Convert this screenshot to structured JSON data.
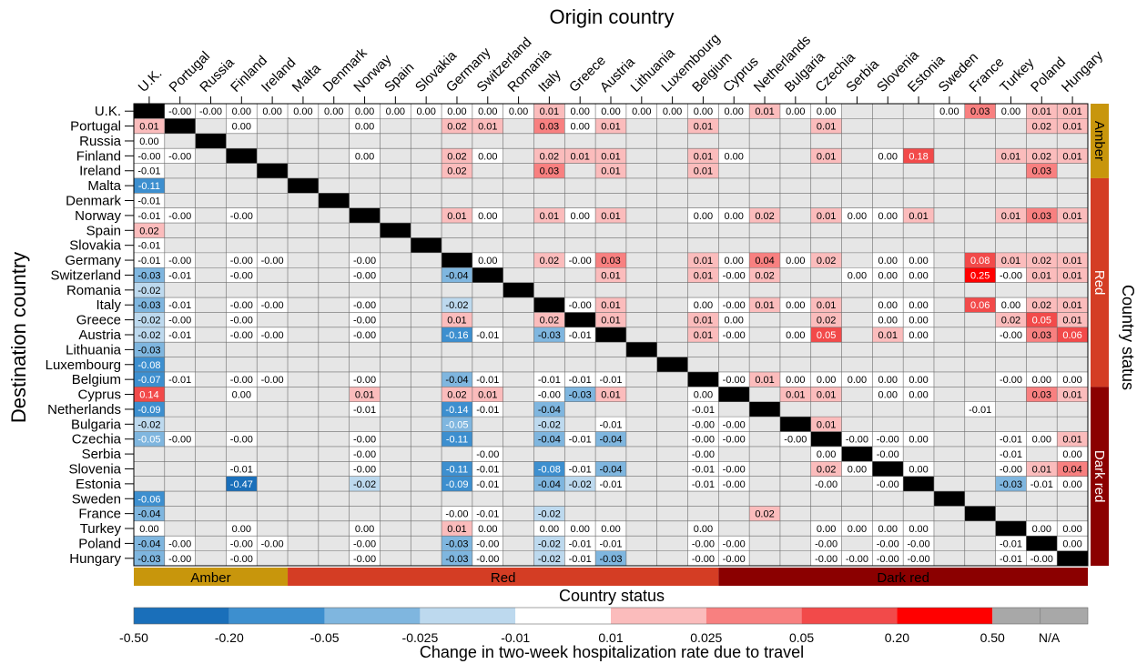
{
  "chart_data": {
    "type": "heatmap",
    "xlabel": "Origin country",
    "ylabel": "Destination country",
    "side_label": "Country status",
    "status_label": "Country status",
    "colorbar_label": "Change in two-week hospitalization rate due to travel",
    "countries": [
      "U.K.",
      "Portugal",
      "Russia",
      "Finland",
      "Ireland",
      "Malta",
      "Denmark",
      "Norway",
      "Spain",
      "Slovakia",
      "Germany",
      "Switzerland",
      "Romania",
      "Italy",
      "Greece",
      "Austria",
      "Lithuania",
      "Luxembourg",
      "Belgium",
      "Cyprus",
      "Netherlands",
      "Bulgaria",
      "Czechia",
      "Serbia",
      "Slovenia",
      "Estonia",
      "Sweden",
      "France",
      "Turkey",
      "Poland",
      "Hungary"
    ],
    "groups": [
      {
        "name": "Amber",
        "start": 0,
        "end": 4,
        "color": "#c8960c"
      },
      {
        "name": "Red",
        "start": 5,
        "end": 18,
        "color": "#d43d24"
      },
      {
        "name": "Dark red",
        "start": 19,
        "end": 30,
        "color": "#8b0000"
      }
    ],
    "colorbar": {
      "ticks": [
        "-0.50",
        "-0.20",
        "-0.05",
        "-0.025",
        "-0.01",
        "0.01",
        "0.025",
        "0.05",
        "0.20",
        "0.50",
        "N/A"
      ],
      "colors": [
        "#1a6fba",
        "#3d8fcf",
        "#7fb6df",
        "#bdd9ee",
        "#ffffff",
        "#fbbcbc",
        "#f88080",
        "#f24a4a",
        "#ff0000",
        "#a8a8a8"
      ]
    },
    "rows": [
      "- -0.00 -0.00 0.00 0.00 0.00 0.00 0.00 0.00 0.00 0.00 0.00 0.00 0.01 0.00 0.00 0.00 0.00 0.00 0.00 0.01 0.00 0.00 . . . 0.00 0.03 0.00 0.01 0.01",
      "0.01 - . 0.00 . . . 0.00 . . 0.02 0.01 . 0.03 0.00 0.01 . . 0.01 . . . 0.01 . . . . . . 0.02 0.01",
      "0.00 . - . . . . . . . . . . . . . . . . . . . . . . . . . . . .",
      "-0.00 -0.00 . - . . . 0.00 . . 0.02 0.00 . 0.02 0.01 0.01 . . 0.01 0.00 . . 0.01 . 0.00 0.18 . . 0.01 0.02 0.01",
      "-0.01 . . . - . . . . . 0.02 . . 0.03 . 0.01 . . 0.01 . . . . . . . . . . 0.03 .",
      "-0.11 . . . . - . . . . . . . . . . . . . . . . . . . . . . . . .",
      "-0.01 . . . . . - . . . . . . . . . . . . . . . . . . . . . . . .",
      "-0.01 -0.00 . -0.00 . . . - . . 0.01 0.00 . 0.01 0.00 0.01 . . 0.00 0.00 0.02 . 0.01 0.00 0.00 0.01 . . 0.01 0.03 0.01",
      "0.02 . . . . . . . - . . . . . . . . . . . . . . . . . . . . . .",
      "-0.01 . . . . . . . . - . . . . . . . . . . . . . . . . . . . . .",
      "-0.01 -0.00 . -0.00 -0.00 . . -0.00 . . - 0.00 . 0.02 -0.00 0.03 . . 0.01 0.00 0.04 0.00 0.02 . 0.00 0.00 . 0.08 0.01 0.02 0.01",
      "-0.03 -0.01 . -0.00 . . . -0.00 . . -0.04 - . . . 0.01 . . 0.01 -0.00 0.02 . . 0.00 0.00 0.00 . 0.25 -0.00 0.01 0.01",
      "-0.02 . . . . . . . . . . . - . . . . . . . . . . . . . . . . . .",
      "-0.03 -0.01 . -0.00 -0.00 . . -0.00 . . -0.02 . . - -0.00 0.01 . . 0.00 -0.00 0.01 0.00 0.01 . 0.00 0.00 . 0.06 0.00 0.02 0.01",
      "-0.02 -0.00 . -0.00 . . . -0.00 . . 0.01 . . 0.02 - 0.01 . . 0.01 0.00 . . 0.02 . 0.00 0.00 . . 0.02 0.05 0.01",
      "-0.02 -0.01 . -0.00 -0.00 . . -0.00 . . -0.16 -0.01 . -0.03 -0.01 - . . 0.01 -0.00 . 0.00 0.05 . 0.01 0.00 . . -0.00 0.03 0.06",
      "-0.03 . . . . . . . . . . . . . . . - . . . . . . . . . . . . . .",
      "-0.08 . . . . . . . . . . . . . . . . - . . . . . . . . . . . . .",
      "-0.07 -0.01 . -0.00 -0.00 . . -0.00 . . -0.04 -0.01 . -0.01 -0.01 -0.01 . . - -0.00 0.01 0.00 0.00 0.00 0.00 0.00 . . -0.00 0.00 0.00",
      "0.14 . . 0.00 . . . 0.01 . . 0.02 0.01 . -0.00 -0.03 0.01 . . 0.00 - . 0.01 0.01 . 0.00 0.00 . . . 0.03 0.01",
      "-0.09 . . . . . . -0.01 . . -0.14 -0.01 . -0.04 . . . . -0.01 . - . . . . . . -0.01 . . .",
      "-0.02 . . . . . . . . . -0.05 . . -0.02 . -0.01 . . -0.00 -0.00 . - 0.01 . . . . . . . .",
      "-0.05 -0.00 . -0.00 . . . -0.00 . . -0.11 . . -0.04 -0.01 -0.04 . . -0.00 -0.00 . -0.00 - -0.00 -0.00 0.00 . . -0.01 0.00 0.01",
      ". . . . . . . -0.00 . . . -0.00 . . . . . . -0.00 . . . 0.00 - -0.00 . . . -0.01 . 0.00",
      ". . . -0.01 . . . -0.00 . . -0.11 -0.01 . -0.08 -0.01 -0.04 . . -0.01 -0.00 . . 0.02 0.00 - 0.00 . . -0.00 0.01 0.04",
      ". . . -0.47 . . . -0.02 . . -0.09 -0.01 . -0.04 -0.02 -0.01 . . -0.01 -0.00 . . -0.00 . -0.00 - . . -0.03 -0.01 0.00",
      "-0.06 . . . . . . . . . . . . . . . . . . . . . . . . . - . . . .",
      "-0.04 . . . . . . . . . -0.00 -0.01 . -0.02 . . . . . . 0.02 . . . . . . - . . .",
      "0.00 . . 0.00 . . . 0.00 . . 0.01 0.00 . 0.00 0.00 0.00 . . 0.00 . . . 0.00 0.00 0.00 0.00 . . - 0.00 0.00",
      "-0.04 -0.00 . -0.00 -0.00 . . -0.00 . . -0.03 -0.00 . -0.02 -0.01 -0.01 . . -0.00 -0.00 . . -0.00 . -0.00 -0.00 . . -0.01 - 0.00",
      "-0.03 -0.00 . -0.00 . . . -0.00 . . -0.03 -0.00 . -0.02 -0.01 -0.03 . . -0.00 -0.00 . . -0.00 -0.00 -0.00 -0.00 . . -0.01 -0.00 -"
    ]
  }
}
